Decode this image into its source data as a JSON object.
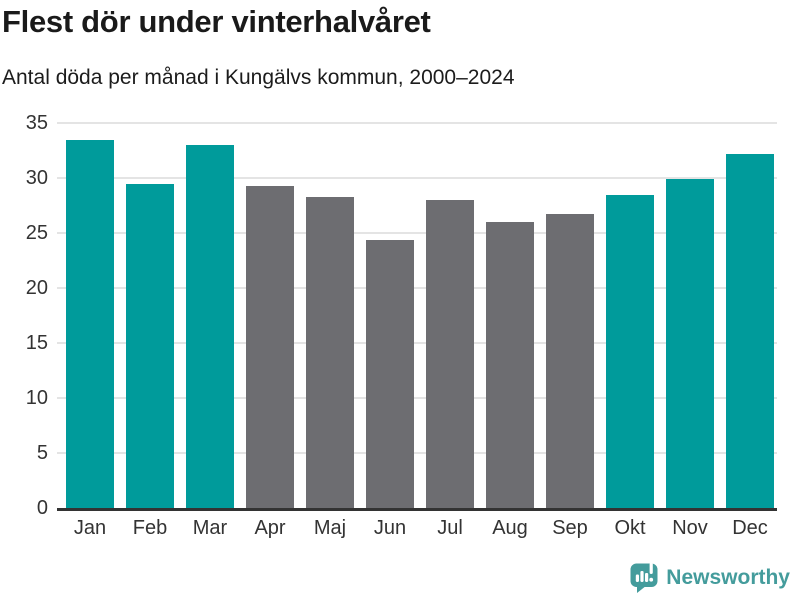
{
  "header": {
    "title": "Flest dör under vinterhalvåret",
    "subtitle": "Antal döda per månad i Kungälvs kommun, 2000–2024"
  },
  "chart_data": {
    "type": "bar",
    "title": "Flest dör under vinterhalvåret",
    "subtitle": "Antal döda per månad i Kungälvs kommun, 2000–2024",
    "categories": [
      "Jan",
      "Feb",
      "Mar",
      "Apr",
      "Maj",
      "Jun",
      "Jul",
      "Aug",
      "Sep",
      "Okt",
      "Nov",
      "Dec"
    ],
    "values": [
      33.5,
      29.5,
      33.0,
      29.3,
      28.3,
      24.4,
      28.0,
      26.0,
      26.7,
      28.5,
      29.9,
      32.2
    ],
    "bar_colors": [
      "teal",
      "teal",
      "teal",
      "gray",
      "gray",
      "gray",
      "gray",
      "gray",
      "gray",
      "teal",
      "teal",
      "teal"
    ],
    "colors": {
      "teal": "#009b9b",
      "gray": "#6d6d71"
    },
    "xlabel": "",
    "ylabel": "",
    "ylim": [
      0,
      35
    ],
    "yticks": [
      0,
      5,
      10,
      15,
      20,
      25,
      30,
      35
    ],
    "grid": true,
    "legend": "none",
    "highlight_meaning": "winter-half-year months highlighted in teal"
  },
  "footer": {
    "brand": "Newsworthy",
    "logo_icon": "newsworthy-speech-bubble-bar-chart-icon",
    "logo_color": "#449c9c"
  }
}
